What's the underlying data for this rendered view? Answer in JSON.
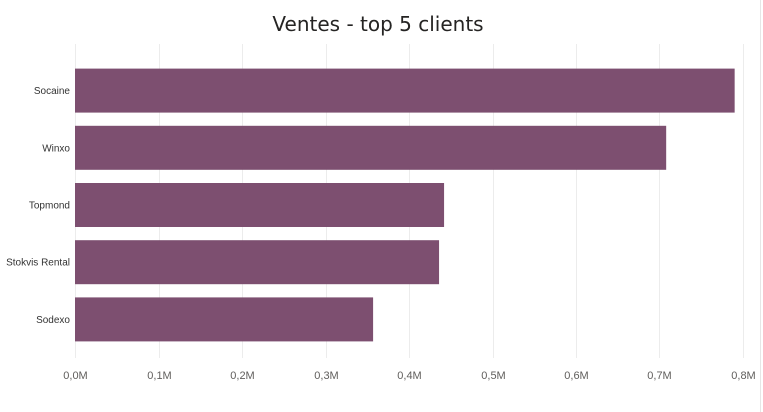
{
  "chart_data": {
    "type": "bar",
    "orientation": "horizontal",
    "title": "Ventes - top 5 clients",
    "categories": [
      "Socaine",
      "Winxo",
      "Topmond",
      "Stokvis Rental",
      "Sodexo"
    ],
    "values": [
      0.79,
      0.708,
      0.442,
      0.436,
      0.357
    ],
    "unit": "M",
    "xlim": [
      0,
      0.8
    ],
    "xticks": [
      0.0,
      0.1,
      0.2,
      0.3,
      0.4,
      0.5,
      0.6,
      0.7,
      0.8
    ],
    "xtick_labels": [
      "0,0M",
      "0,1M",
      "0,2M",
      "0,3M",
      "0,4M",
      "0,5M",
      "0,6M",
      "0,7M",
      "0,8M"
    ],
    "grid": true,
    "colors": {
      "bar": "#7d4f70",
      "grid": "#ececec",
      "title": "#252423",
      "tick": "#605e5c",
      "category": "#333333"
    }
  }
}
